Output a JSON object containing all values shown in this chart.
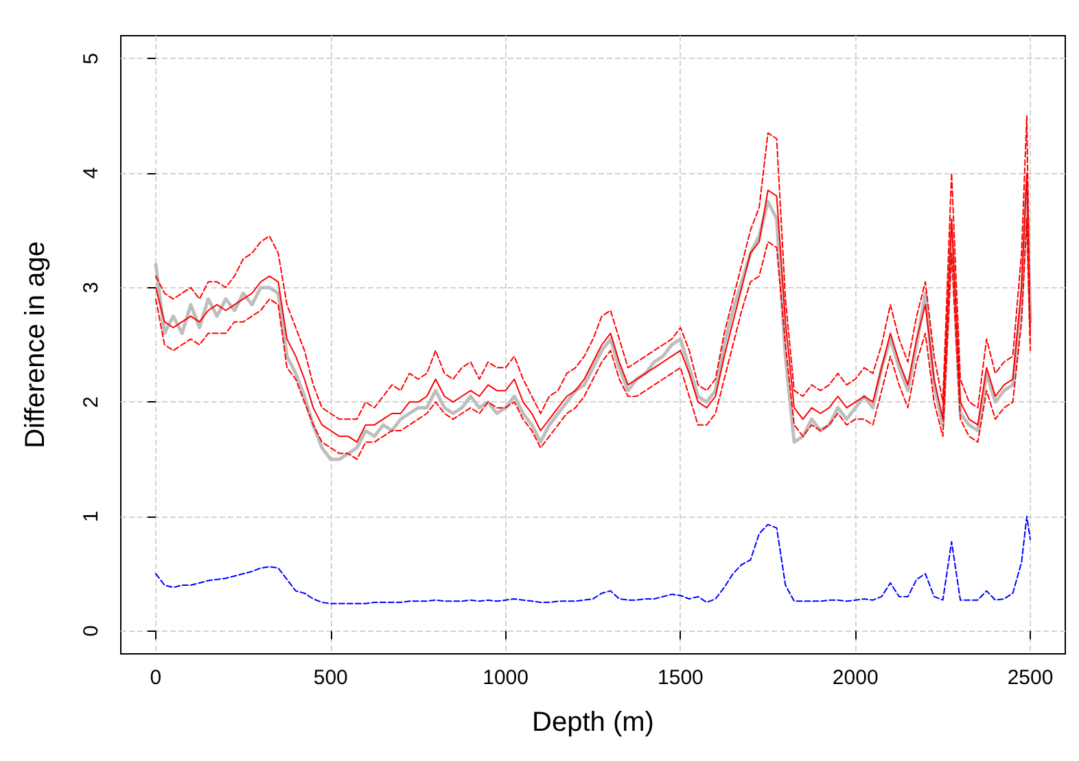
{
  "chart_data": {
    "type": "line",
    "xlabel": "Depth (m)",
    "ylabel": "Difference in age",
    "x": [
      0,
      25,
      50,
      75,
      100,
      125,
      150,
      175,
      200,
      225,
      250,
      275,
      300,
      325,
      350,
      375,
      400,
      425,
      450,
      475,
      500,
      525,
      550,
      575,
      600,
      625,
      650,
      675,
      700,
      725,
      750,
      775,
      800,
      825,
      850,
      875,
      900,
      925,
      950,
      975,
      1000,
      1025,
      1050,
      1075,
      1100,
      1125,
      1150,
      1175,
      1200,
      1225,
      1250,
      1275,
      1300,
      1325,
      1350,
      1375,
      1400,
      1425,
      1450,
      1475,
      1500,
      1525,
      1550,
      1575,
      1600,
      1625,
      1650,
      1675,
      1700,
      1725,
      1750,
      1775,
      1800,
      1825,
      1850,
      1875,
      1900,
      1925,
      1950,
      1975,
      2000,
      2025,
      2050,
      2075,
      2100,
      2125,
      2150,
      2175,
      2200,
      2225,
      2250,
      2275,
      2300,
      2325,
      2350,
      2375,
      2400,
      2425,
      2450,
      2475,
      2490,
      2500
    ],
    "series": [
      {
        "color": "#bebebe",
        "line_style": "solid",
        "values": [
          3.2,
          2.6,
          2.75,
          2.6,
          2.85,
          2.65,
          2.9,
          2.75,
          2.9,
          2.8,
          2.95,
          2.85,
          3.0,
          3.0,
          2.95,
          2.4,
          2.25,
          2.05,
          1.8,
          1.6,
          1.5,
          1.5,
          1.55,
          1.6,
          1.75,
          1.7,
          1.8,
          1.75,
          1.85,
          1.9,
          1.95,
          1.95,
          2.1,
          1.95,
          1.9,
          1.95,
          2.05,
          1.95,
          2.0,
          1.9,
          1.95,
          2.05,
          1.9,
          1.8,
          1.65,
          1.8,
          1.9,
          2.0,
          2.1,
          2.15,
          2.3,
          2.45,
          2.55,
          2.3,
          2.1,
          2.2,
          2.25,
          2.35,
          2.4,
          2.5,
          2.55,
          2.3,
          2.05,
          2.0,
          2.1,
          2.5,
          2.8,
          3.05,
          3.3,
          3.45,
          3.75,
          3.6,
          2.4,
          1.65,
          1.7,
          1.85,
          1.75,
          1.8,
          1.95,
          1.85,
          1.95,
          2.05,
          1.95,
          2.3,
          2.55,
          2.3,
          2.1,
          2.5,
          2.95,
          2.15,
          1.8,
          3.5,
          1.9,
          1.8,
          1.75,
          2.25,
          2.0,
          2.1,
          2.15,
          2.9,
          3.9,
          2.7
        ]
      },
      {
        "color": "#ff0000",
        "line_style": "dashed",
        "values": [
          3.1,
          2.95,
          2.9,
          2.95,
          3.0,
          2.9,
          3.05,
          3.05,
          3.0,
          3.1,
          3.25,
          3.3,
          3.4,
          3.45,
          3.3,
          2.85,
          2.65,
          2.45,
          2.15,
          1.95,
          1.9,
          1.85,
          1.85,
          1.85,
          2.0,
          1.95,
          2.05,
          2.15,
          2.1,
          2.25,
          2.2,
          2.25,
          2.45,
          2.25,
          2.2,
          2.3,
          2.35,
          2.2,
          2.35,
          2.3,
          2.3,
          2.4,
          2.2,
          2.05,
          1.9,
          2.05,
          2.1,
          2.25,
          2.3,
          2.4,
          2.55,
          2.75,
          2.8,
          2.55,
          2.3,
          2.35,
          2.4,
          2.45,
          2.5,
          2.55,
          2.65,
          2.45,
          2.15,
          2.1,
          2.2,
          2.6,
          2.9,
          3.2,
          3.5,
          3.7,
          4.35,
          4.3,
          2.9,
          2.1,
          2.05,
          2.15,
          2.1,
          2.15,
          2.25,
          2.15,
          2.2,
          2.3,
          2.25,
          2.5,
          2.85,
          2.55,
          2.35,
          2.75,
          3.05,
          2.4,
          2.0,
          4.0,
          2.2,
          2.0,
          1.95,
          2.55,
          2.25,
          2.35,
          2.4,
          3.3,
          4.5,
          2.5
        ]
      },
      {
        "color": "#ff0000",
        "line_style": "dashed",
        "values": [
          2.9,
          2.5,
          2.45,
          2.5,
          2.55,
          2.5,
          2.6,
          2.6,
          2.6,
          2.7,
          2.7,
          2.75,
          2.8,
          2.9,
          2.85,
          2.3,
          2.2,
          2.0,
          1.8,
          1.65,
          1.6,
          1.55,
          1.55,
          1.5,
          1.65,
          1.65,
          1.7,
          1.75,
          1.75,
          1.8,
          1.85,
          1.9,
          2.0,
          1.9,
          1.85,
          1.9,
          1.95,
          1.9,
          2.0,
          1.95,
          1.95,
          2.0,
          1.85,
          1.75,
          1.6,
          1.7,
          1.8,
          1.9,
          1.95,
          2.05,
          2.2,
          2.35,
          2.45,
          2.2,
          2.05,
          2.05,
          2.1,
          2.15,
          2.2,
          2.25,
          2.3,
          2.05,
          1.8,
          1.8,
          1.9,
          2.2,
          2.5,
          2.8,
          3.05,
          3.1,
          3.4,
          3.35,
          2.5,
          1.8,
          1.7,
          1.8,
          1.75,
          1.8,
          1.9,
          1.8,
          1.85,
          1.85,
          1.8,
          2.1,
          2.4,
          2.15,
          1.95,
          2.35,
          2.6,
          2.0,
          1.7,
          3.3,
          1.85,
          1.7,
          1.65,
          2.1,
          1.85,
          1.95,
          2.0,
          2.7,
          3.6,
          2.45
        ]
      },
      {
        "color": "#ff0000",
        "line_style": "solid",
        "values": [
          3.0,
          2.7,
          2.65,
          2.7,
          2.75,
          2.7,
          2.8,
          2.85,
          2.8,
          2.85,
          2.9,
          2.95,
          3.05,
          3.1,
          3.05,
          2.55,
          2.4,
          2.2,
          1.95,
          1.8,
          1.75,
          1.7,
          1.7,
          1.65,
          1.8,
          1.8,
          1.85,
          1.9,
          1.9,
          2.0,
          2.0,
          2.05,
          2.2,
          2.05,
          2.0,
          2.05,
          2.1,
          2.05,
          2.15,
          2.1,
          2.1,
          2.2,
          2.0,
          1.9,
          1.75,
          1.85,
          1.95,
          2.05,
          2.1,
          2.2,
          2.35,
          2.5,
          2.6,
          2.35,
          2.15,
          2.2,
          2.25,
          2.3,
          2.35,
          2.4,
          2.45,
          2.25,
          2.0,
          1.95,
          2.05,
          2.4,
          2.7,
          3.0,
          3.3,
          3.4,
          3.85,
          3.8,
          2.7,
          1.95,
          1.85,
          1.95,
          1.9,
          1.95,
          2.05,
          1.95,
          2.0,
          2.05,
          2.0,
          2.3,
          2.6,
          2.35,
          2.15,
          2.55,
          2.85,
          2.2,
          1.85,
          3.6,
          2.0,
          1.85,
          1.8,
          2.3,
          2.05,
          2.15,
          2.2,
          3.0,
          4.0,
          2.6
        ]
      },
      {
        "color": "#0000ff",
        "line_style": "dashed",
        "values": [
          0.5,
          0.4,
          0.38,
          0.4,
          0.4,
          0.42,
          0.44,
          0.45,
          0.46,
          0.48,
          0.5,
          0.52,
          0.55,
          0.56,
          0.55,
          0.45,
          0.35,
          0.33,
          0.28,
          0.25,
          0.24,
          0.24,
          0.24,
          0.24,
          0.24,
          0.25,
          0.25,
          0.25,
          0.25,
          0.26,
          0.26,
          0.26,
          0.27,
          0.26,
          0.26,
          0.26,
          0.27,
          0.26,
          0.27,
          0.26,
          0.27,
          0.28,
          0.27,
          0.26,
          0.25,
          0.25,
          0.26,
          0.26,
          0.26,
          0.27,
          0.28,
          0.33,
          0.35,
          0.28,
          0.27,
          0.27,
          0.28,
          0.28,
          0.3,
          0.32,
          0.31,
          0.28,
          0.3,
          0.25,
          0.28,
          0.38,
          0.5,
          0.58,
          0.62,
          0.85,
          0.93,
          0.9,
          0.4,
          0.26,
          0.26,
          0.26,
          0.26,
          0.27,
          0.27,
          0.26,
          0.27,
          0.28,
          0.27,
          0.3,
          0.42,
          0.3,
          0.3,
          0.45,
          0.5,
          0.3,
          0.27,
          0.78,
          0.27,
          0.27,
          0.27,
          0.35,
          0.27,
          0.28,
          0.33,
          0.6,
          1.0,
          0.8
        ]
      }
    ],
    "xlim": [
      -100,
      2600
    ],
    "xticks": [
      0,
      500,
      1000,
      1500,
      2000,
      2500
    ],
    "ylim": [
      -0.2,
      5.2
    ],
    "yticks": [
      0,
      1,
      2,
      3,
      4,
      5
    ],
    "grid": true,
    "marker": "none"
  }
}
